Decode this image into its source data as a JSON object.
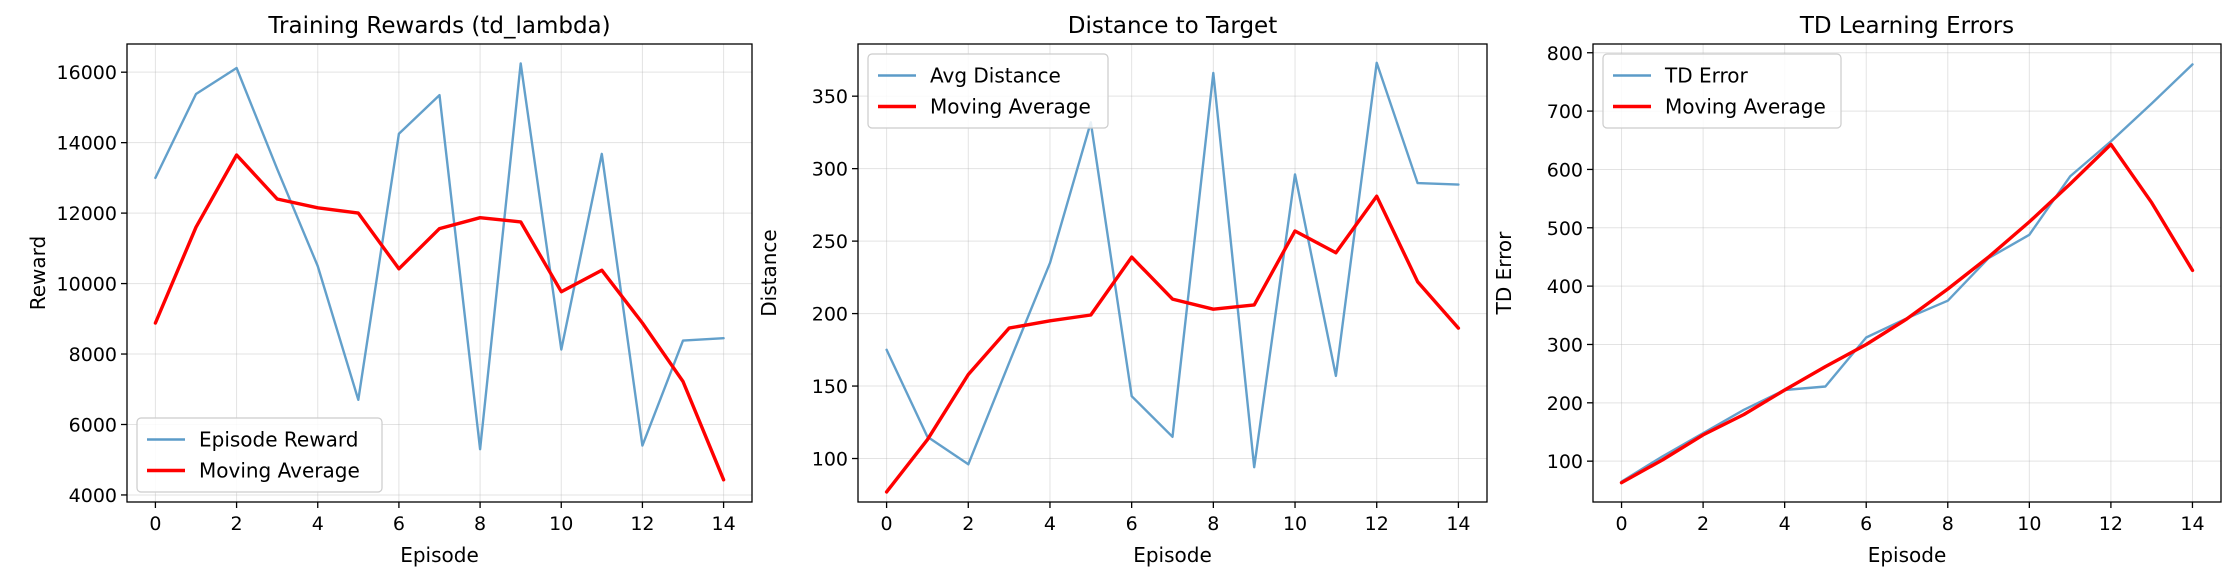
{
  "chart_data": [
    {
      "type": "line",
      "title": "Training Rewards (td_lambda)",
      "xlabel": "Episode",
      "ylabel": "Reward",
      "xlim": [
        -0.7,
        14.7
      ],
      "ylim": [
        3800,
        16800
      ],
      "xticks": [
        0,
        2,
        4,
        6,
        8,
        10,
        12,
        14
      ],
      "yticks": [
        4000,
        6000,
        8000,
        10000,
        12000,
        14000,
        16000
      ],
      "grid": true,
      "legend": "lower-left",
      "x": [
        0,
        1,
        2,
        3,
        4,
        5,
        6,
        7,
        8,
        9,
        10,
        11,
        12,
        13,
        14
      ],
      "series": [
        {
          "name": "Episode Reward",
          "color": "#5b9bc8",
          "width": 2.4,
          "values": [
            13000,
            15380,
            16120,
            13250,
            10500,
            6700,
            14250,
            15350,
            5300,
            16250,
            8130,
            13680,
            5400,
            8380,
            8450
          ]
        },
        {
          "name": "Moving Average",
          "color": "#ff0000",
          "width": 3.4,
          "values": [
            8880,
            11600,
            13650,
            12400,
            12150,
            12000,
            10420,
            11560,
            11870,
            11750,
            9770,
            10380,
            8880,
            7220,
            4430
          ]
        }
      ]
    },
    {
      "type": "line",
      "title": "Distance to Target",
      "xlabel": "Episode",
      "ylabel": "Distance",
      "xlim": [
        -0.7,
        14.7
      ],
      "ylim": [
        70,
        386
      ],
      "xticks": [
        0,
        2,
        4,
        6,
        8,
        10,
        12,
        14
      ],
      "yticks": [
        100,
        150,
        200,
        250,
        300,
        350
      ],
      "grid": true,
      "legend": "upper-left",
      "x": [
        0,
        1,
        2,
        3,
        4,
        5,
        6,
        7,
        8,
        9,
        10,
        11,
        12,
        13,
        14
      ],
      "series": [
        {
          "name": "Avg Distance",
          "color": "#5b9bc8",
          "width": 2.4,
          "values": [
            175,
            115,
            96,
            166,
            235,
            332,
            143,
            115,
            366,
            94,
            296,
            157,
            373,
            290,
            289
          ]
        },
        {
          "name": "Moving Average",
          "color": "#ff0000",
          "width": 3.4,
          "values": [
            77,
            113,
            158,
            190,
            195,
            199,
            239,
            210,
            203,
            206,
            257,
            242,
            281,
            222,
            190
          ]
        }
      ]
    },
    {
      "type": "line",
      "title": "TD Learning Errors",
      "xlabel": "Episode",
      "ylabel": "TD Error",
      "xlim": [
        -0.7,
        14.7
      ],
      "ylim": [
        30,
        815
      ],
      "xticks": [
        0,
        2,
        4,
        6,
        8,
        10,
        12,
        14
      ],
      "yticks": [
        100,
        200,
        300,
        400,
        500,
        600,
        700,
        800
      ],
      "grid": true,
      "legend": "upper-left",
      "x": [
        0,
        1,
        2,
        3,
        4,
        5,
        6,
        7,
        8,
        9,
        10,
        11,
        12,
        13,
        14
      ],
      "series": [
        {
          "name": "TD Error",
          "color": "#5b9bc8",
          "width": 2.4,
          "values": [
            65,
            108,
            148,
            188,
            222,
            228,
            312,
            345,
            375,
            448,
            488,
            588,
            648,
            713,
            780
          ]
        },
        {
          "name": "Moving Average",
          "color": "#ff0000",
          "width": 3.4,
          "values": [
            63,
            102,
            145,
            180,
            222,
            262,
            300,
            344,
            395,
            450,
            510,
            575,
            643,
            543,
            427
          ]
        }
      ]
    }
  ]
}
